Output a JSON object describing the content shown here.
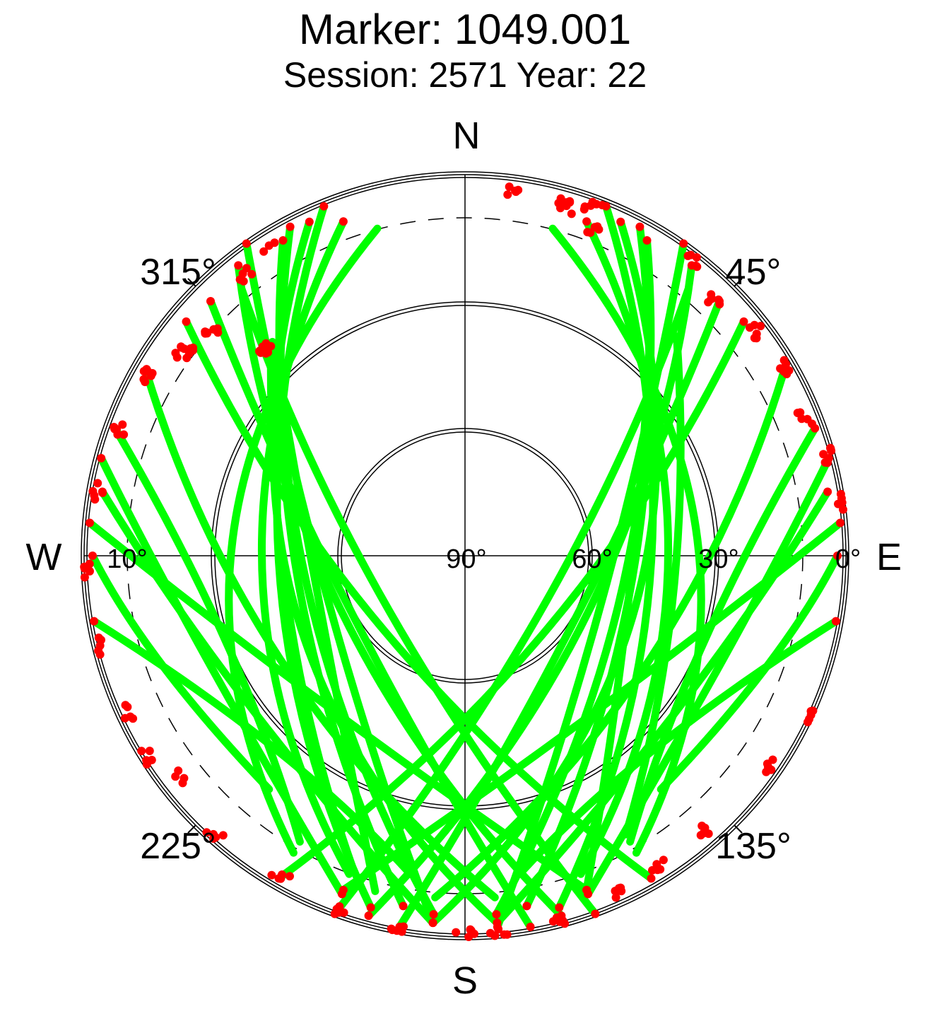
{
  "chart_data": {
    "type": "scatter",
    "projection": "polar-skyplot",
    "title": "Marker: 1049.001",
    "subtitle": "Session: 2571 Year: 22",
    "direction_labels": {
      "north": "N",
      "south": "S",
      "east": "E",
      "west": "W"
    },
    "azimuth_labels": [
      {
        "azimuth": 45,
        "label": "45°"
      },
      {
        "azimuth": 135,
        "label": "135°"
      },
      {
        "azimuth": 225,
        "label": "225°"
      },
      {
        "azimuth": 315,
        "label": "315°"
      }
    ],
    "elevation_labels": [
      {
        "elevation": 0,
        "label": "0°"
      },
      {
        "elevation": 30,
        "label": "30°"
      },
      {
        "elevation": 60,
        "label": "60°"
      },
      {
        "elevation": 90,
        "label": "90°"
      },
      {
        "elevation": 10,
        "label": "10°"
      }
    ],
    "elevation_rings": [
      0,
      30,
      60
    ],
    "cutoff_elevation_dashed": 10,
    "elevation_range": [
      0,
      90
    ],
    "colors": {
      "accepted": "#00ff00",
      "rejected": "#ff0000",
      "ring": "#000000"
    },
    "series": [
      {
        "start": [
          35,
          0
        ],
        "end": [
          175,
          2
        ],
        "peak": [
          105,
          56
        ]
      },
      {
        "start": [
          25,
          3
        ],
        "end": [
          185,
          3
        ],
        "peak": [
          105,
          48
        ]
      },
      {
        "start": [
          30,
          4
        ],
        "end": [
          175,
          5
        ],
        "peak": [
          100,
          52
        ]
      },
      {
        "start": [
          20,
          6
        ],
        "end": [
          160,
          10
        ],
        "peak": [
          90,
          42
        ]
      },
      {
        "start": [
          40,
          8
        ],
        "end": [
          200,
          0
        ],
        "peak": [
          120,
          68
        ]
      },
      {
        "start": [
          15,
          10
        ],
        "end": [
          150,
          9
        ],
        "peak": [
          85,
          35
        ]
      },
      {
        "start": [
          45,
          5
        ],
        "end": [
          190,
          1
        ],
        "peak": [
          115,
          60
        ]
      },
      {
        "start": [
          28,
          2
        ],
        "end": [
          170,
          6
        ],
        "peak": [
          95,
          50
        ]
      },
      {
        "start": [
          50,
          4
        ],
        "end": [
          210,
          2
        ],
        "peak": [
          130,
          64
        ]
      },
      {
        "start": [
          22,
          1
        ],
        "end": [
          165,
          4
        ],
        "peak": [
          93,
          46
        ]
      },
      {
        "start": [
          38,
          3
        ],
        "end": [
          195,
          2
        ],
        "peak": [
          115,
          58
        ]
      },
      {
        "start": [
          60,
          3
        ],
        "end": [
          185,
          9
        ],
        "peak": [
          120,
          40
        ]
      },
      {
        "start": [
          70,
          2
        ],
        "end": [
          150,
          12
        ],
        "peak": [
          110,
          30
        ]
      },
      {
        "start": [
          75,
          1
        ],
        "end": [
          160,
          5
        ],
        "peak": [
          110,
          24
        ]
      },
      {
        "start": [
          80,
          3
        ],
        "end": [
          175,
          3
        ],
        "peak": [
          125,
          28
        ]
      },
      {
        "start": [
          85,
          1
        ],
        "end": [
          200,
          6
        ],
        "peak": [
          140,
          42
        ]
      },
      {
        "start": [
          90,
          2
        ],
        "end": [
          140,
          18
        ],
        "peak": [
          110,
          14
        ]
      },
      {
        "start": [
          100,
          1
        ],
        "end": [
          170,
          14
        ],
        "peak": [
          135,
          26
        ]
      },
      {
        "start": [
          325,
          0
        ],
        "end": [
          185,
          3
        ],
        "peak": [
          255,
          56
        ]
      },
      {
        "start": [
          335,
          3
        ],
        "end": [
          175,
          3
        ],
        "peak": [
          255,
          48
        ]
      },
      {
        "start": [
          330,
          4
        ],
        "end": [
          185,
          5
        ],
        "peak": [
          260,
          52
        ]
      },
      {
        "start": [
          340,
          6
        ],
        "end": [
          200,
          10
        ],
        "peak": [
          270,
          42
        ]
      },
      {
        "start": [
          320,
          8
        ],
        "end": [
          160,
          0
        ],
        "peak": [
          240,
          68
        ]
      },
      {
        "start": [
          345,
          10
        ],
        "end": [
          210,
          9
        ],
        "peak": [
          275,
          35
        ]
      },
      {
        "start": [
          315,
          5
        ],
        "end": [
          170,
          1
        ],
        "peak": [
          245,
          60
        ]
      },
      {
        "start": [
          332,
          2
        ],
        "end": [
          190,
          6
        ],
        "peak": [
          265,
          50
        ]
      },
      {
        "start": [
          310,
          4
        ],
        "end": [
          150,
          2
        ],
        "peak": [
          230,
          64
        ]
      },
      {
        "start": [
          338,
          1
        ],
        "end": [
          195,
          4
        ],
        "peak": [
          267,
          46
        ]
      },
      {
        "start": [
          322,
          3
        ],
        "end": [
          165,
          2
        ],
        "peak": [
          245,
          58
        ]
      },
      {
        "start": [
          300,
          3
        ],
        "end": [
          175,
          9
        ],
        "peak": [
          240,
          40
        ]
      },
      {
        "start": [
          290,
          2
        ],
        "end": [
          210,
          12
        ],
        "peak": [
          250,
          30
        ]
      },
      {
        "start": [
          285,
          1
        ],
        "end": [
          200,
          5
        ],
        "peak": [
          250,
          24
        ]
      },
      {
        "start": [
          280,
          3
        ],
        "end": [
          185,
          3
        ],
        "peak": [
          235,
          28
        ]
      },
      {
        "start": [
          275,
          1
        ],
        "end": [
          160,
          6
        ],
        "peak": [
          220,
          42
        ]
      },
      {
        "start": [
          270,
          2
        ],
        "end": [
          220,
          18
        ],
        "peak": [
          250,
          14
        ]
      },
      {
        "start": [
          260,
          1
        ],
        "end": [
          190,
          14
        ],
        "peak": [
          225,
          26
        ]
      },
      {
        "start": [
          318,
          22
        ],
        "end": [
          195,
          8
        ],
        "peak": [
          255,
          54
        ]
      },
      {
        "start": [
          316,
          24
        ],
        "end": [
          200,
          12
        ],
        "peak": [
          250,
          46
        ]
      },
      {
        "start": [
          40,
          22
        ],
        "end": [
          160,
          6
        ],
        "peak": [
          105,
          50
        ]
      },
      {
        "start": [
          44,
          18
        ],
        "end": [
          150,
          14
        ],
        "peak": [
          100,
          40
        ]
      }
    ],
    "rejected_clusters": [
      {
        "az": 8,
        "el": 3,
        "n": 5
      },
      {
        "az": 16,
        "el": 4,
        "n": 8
      },
      {
        "az": 20,
        "el": 2,
        "n": 7
      },
      {
        "az": 22,
        "el": 7,
        "n": 5
      },
      {
        "az": 38,
        "el": 2,
        "n": 5
      },
      {
        "az": 44,
        "el": 6,
        "n": 6
      },
      {
        "az": 52,
        "el": 3,
        "n": 6
      },
      {
        "az": 60,
        "el": 2,
        "n": 5
      },
      {
        "az": 68,
        "el": 3,
        "n": 5
      },
      {
        "az": 75,
        "el": 1,
        "n": 6
      },
      {
        "az": 82,
        "el": 0,
        "n": 5
      },
      {
        "az": 115,
        "el": 1,
        "n": 5
      },
      {
        "az": 125,
        "el": 2,
        "n": 5
      },
      {
        "az": 140,
        "el": 4,
        "n": 6
      },
      {
        "az": 148,
        "el": 3,
        "n": 5
      },
      {
        "az": 155,
        "el": 2,
        "n": 6
      },
      {
        "az": 165,
        "el": 1,
        "n": 5
      },
      {
        "az": 175,
        "el": 0,
        "n": 6
      },
      {
        "az": 180,
        "el": 1,
        "n": 5
      },
      {
        "az": 190,
        "el": 0,
        "n": 5
      },
      {
        "az": 200,
        "el": 2,
        "n": 4
      },
      {
        "az": 210,
        "el": 3,
        "n": 4
      },
      {
        "az": 222,
        "el": 2,
        "n": 5
      },
      {
        "az": 232,
        "el": 4,
        "n": 4
      },
      {
        "az": 238,
        "el": 1,
        "n": 5
      },
      {
        "az": 245,
        "el": 2,
        "n": 5
      },
      {
        "az": 256,
        "el": 1,
        "n": 5
      },
      {
        "az": 268,
        "el": 0,
        "n": 5
      },
      {
        "az": 280,
        "el": 2,
        "n": 5
      },
      {
        "az": 290,
        "el": 3,
        "n": 6
      },
      {
        "az": 300,
        "el": 4,
        "n": 8
      },
      {
        "az": 306,
        "el": 8,
        "n": 10
      },
      {
        "az": 312,
        "el": 10,
        "n": 8
      },
      {
        "az": 316,
        "el": 22,
        "n": 12
      },
      {
        "az": 322,
        "el": 6,
        "n": 5
      },
      {
        "az": 328,
        "el": 4,
        "n": 3
      }
    ]
  }
}
